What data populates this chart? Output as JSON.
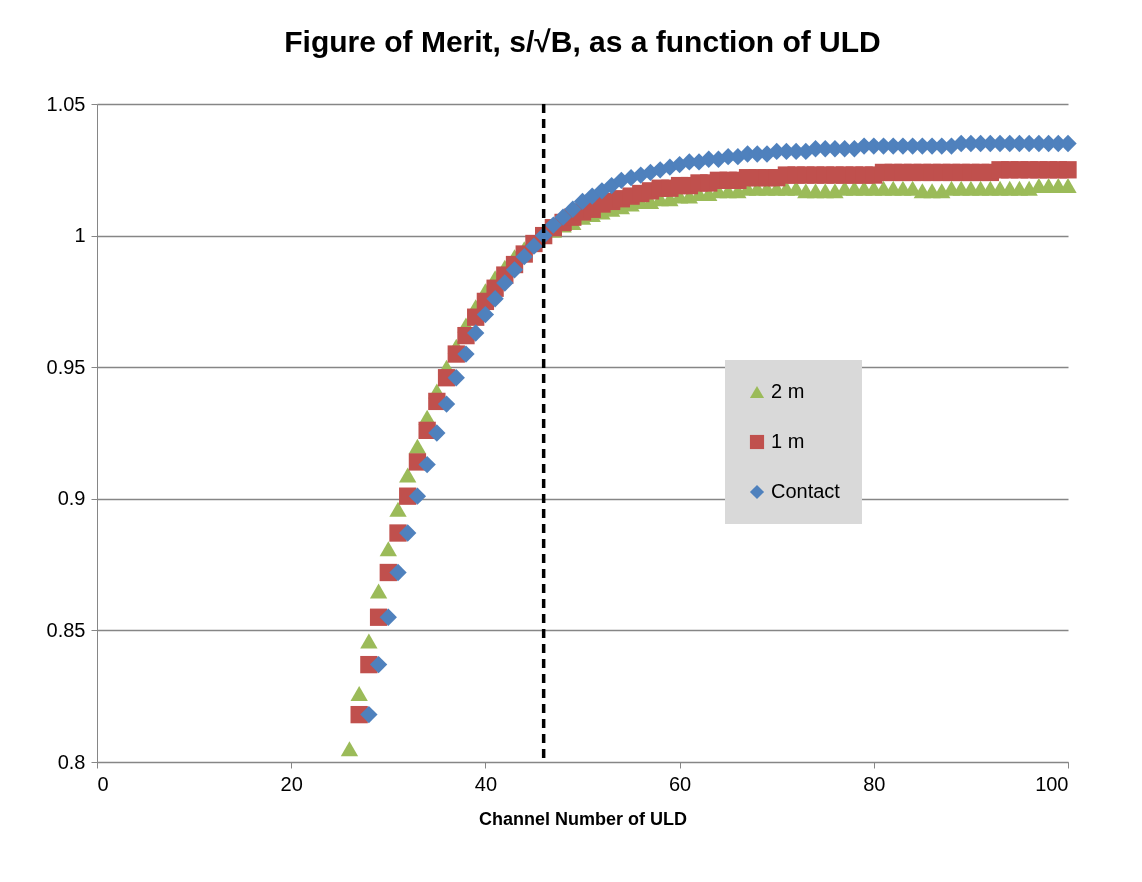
{
  "chart_data": {
    "type": "scatter",
    "title": "Figure of Merit, s/√B, as a function of ULD",
    "xlabel": "Channel Number of ULD",
    "xlim": [
      0,
      100
    ],
    "xticks": [
      0,
      20,
      40,
      60,
      80,
      100
    ],
    "ylim": [
      0.8,
      1.05
    ],
    "yticks": [
      0.8,
      0.85,
      0.9,
      0.95,
      1,
      1.05
    ],
    "grid": "y",
    "legend": "right",
    "ref_lines": [
      {
        "axis": "x",
        "value": 46,
        "color": "#000000",
        "line_style": "dashed"
      }
    ],
    "series": [
      {
        "name": "2 m",
        "color": "#9bbb59",
        "marker": "triangle",
        "x": [
          26,
          27,
          28,
          29,
          30,
          31,
          32,
          33,
          34,
          35,
          36,
          37,
          38,
          39,
          40,
          41,
          42,
          43,
          44,
          45,
          46,
          47,
          48,
          49,
          50,
          51,
          52,
          53,
          54,
          55,
          56,
          57,
          58,
          59,
          60,
          61,
          62,
          63,
          64,
          65,
          66,
          67,
          68,
          69,
          70,
          71,
          72,
          73,
          74,
          75,
          76,
          77,
          78,
          79,
          80,
          81,
          82,
          83,
          84,
          85,
          86,
          87,
          88,
          89,
          90,
          91,
          92,
          93,
          94,
          95,
          96,
          97,
          98,
          99,
          100
        ],
        "values": [
          0.805,
          0.826,
          0.846,
          0.865,
          0.881,
          0.896,
          0.909,
          0.92,
          0.931,
          0.941,
          0.95,
          0.958,
          0.966,
          0.973,
          0.979,
          0.984,
          0.988,
          0.992,
          0.995,
          null,
          null,
          1.002,
          1.004,
          1.005,
          1.007,
          1.008,
          1.009,
          1.01,
          1.011,
          1.012,
          1.013,
          1.013,
          1.014,
          1.014,
          1.015,
          1.015,
          1.016,
          1.016,
          1.017,
          1.017,
          1.017,
          1.018,
          1.018,
          1.018,
          1.018,
          1.018,
          1.018,
          1.017,
          1.017,
          1.017,
          1.017,
          1.018,
          1.018,
          1.018,
          1.018,
          1.018,
          1.018,
          1.018,
          1.018,
          1.017,
          1.017,
          1.017,
          1.018,
          1.018,
          1.018,
          1.018,
          1.018,
          1.018,
          1.018,
          1.018,
          1.018,
          1.019,
          1.019,
          1.019,
          1.019
        ]
      },
      {
        "name": "1 m",
        "color": "#c0504d",
        "marker": "square",
        "x": [
          27,
          28,
          29,
          30,
          31,
          32,
          33,
          34,
          35,
          36,
          37,
          38,
          39,
          40,
          41,
          42,
          43,
          44,
          45,
          46,
          47,
          48,
          49,
          50,
          51,
          52,
          53,
          54,
          55,
          56,
          57,
          58,
          59,
          60,
          61,
          62,
          63,
          64,
          65,
          66,
          67,
          68,
          69,
          70,
          71,
          72,
          73,
          74,
          75,
          76,
          77,
          78,
          79,
          80,
          81,
          82,
          83,
          84,
          85,
          86,
          87,
          88,
          89,
          90,
          91,
          92,
          93,
          94,
          95,
          96,
          97,
          98,
          99,
          100
        ],
        "values": [
          0.818,
          0.837,
          0.855,
          0.872,
          0.887,
          0.901,
          0.914,
          0.926,
          0.937,
          0.946,
          0.955,
          0.962,
          0.969,
          0.975,
          0.98,
          0.985,
          0.989,
          0.993,
          0.997,
          1.0,
          1.003,
          1.005,
          1.007,
          1.009,
          1.01,
          1.012,
          1.013,
          1.014,
          1.015,
          1.016,
          1.017,
          1.018,
          1.018,
          1.019,
          1.019,
          1.02,
          1.02,
          1.021,
          1.021,
          1.021,
          1.022,
          1.022,
          1.022,
          1.022,
          1.023,
          1.023,
          1.023,
          1.023,
          1.023,
          1.023,
          1.023,
          1.023,
          1.023,
          1.023,
          1.024,
          1.024,
          1.024,
          1.024,
          1.024,
          1.024,
          1.024,
          1.024,
          1.024,
          1.024,
          1.024,
          1.024,
          1.025,
          1.025,
          1.025,
          1.025,
          1.025,
          1.025,
          1.025,
          1.025
        ]
      },
      {
        "name": "Contact",
        "color": "#4f81bd",
        "marker": "diamond",
        "x": [
          28,
          29,
          30,
          31,
          32,
          33,
          34,
          35,
          36,
          37,
          38,
          39,
          40,
          41,
          42,
          43,
          44,
          45,
          46,
          47,
          48,
          49,
          50,
          51,
          52,
          53,
          54,
          55,
          56,
          57,
          58,
          59,
          60,
          61,
          62,
          63,
          64,
          65,
          66,
          67,
          68,
          69,
          70,
          71,
          72,
          73,
          74,
          75,
          76,
          77,
          78,
          79,
          80,
          81,
          82,
          83,
          84,
          85,
          86,
          87,
          88,
          89,
          90,
          91,
          92,
          93,
          94,
          95,
          96,
          97,
          98,
          99,
          100
        ],
        "values": [
          0.818,
          0.837,
          0.855,
          0.872,
          0.887,
          0.901,
          0.913,
          0.925,
          0.936,
          0.946,
          0.955,
          0.963,
          0.97,
          0.976,
          0.982,
          0.987,
          0.992,
          0.996,
          1.0,
          1.004,
          1.007,
          1.01,
          1.013,
          1.015,
          1.017,
          1.019,
          1.021,
          1.022,
          1.023,
          1.024,
          1.025,
          1.026,
          1.027,
          1.028,
          1.028,
          1.029,
          1.029,
          1.03,
          1.03,
          1.031,
          1.031,
          1.031,
          1.032,
          1.032,
          1.032,
          1.032,
          1.033,
          1.033,
          1.033,
          1.033,
          1.033,
          1.034,
          1.034,
          1.034,
          1.034,
          1.034,
          1.034,
          1.034,
          1.034,
          1.034,
          1.034,
          1.035,
          1.035,
          1.035,
          1.035,
          1.035,
          1.035,
          1.035,
          1.035,
          1.035,
          1.035,
          1.035,
          1.035
        ]
      }
    ]
  }
}
